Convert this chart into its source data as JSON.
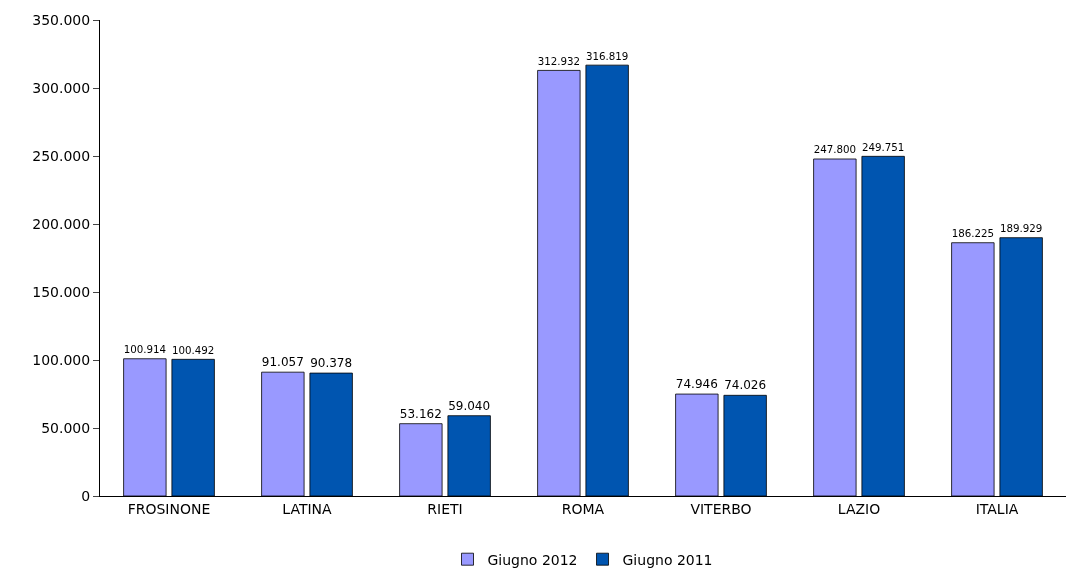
{
  "chart_data": {
    "type": "bar",
    "categories": [
      "FROSINONE",
      "LATINA",
      "RIETI",
      "ROMA",
      "VITERBO",
      "LAZIO",
      "ITALIA"
    ],
    "series": [
      {
        "name": "Giugno 2012",
        "color": "#9999ff",
        "values": [
          100914,
          91057,
          53162,
          312932,
          74946,
          247800,
          186225
        ],
        "value_labels": [
          "100.914",
          "91.057",
          "53.162",
          "312.932",
          "74.946",
          "247.800",
          "186.225"
        ]
      },
      {
        "name": "Giugno 2011",
        "color": "#0055b0",
        "values": [
          100492,
          90378,
          59040,
          316819,
          74026,
          249751,
          189929
        ],
        "value_labels": [
          "100.492",
          "90.378",
          "59.040",
          "316.819",
          "74.026",
          "249.751",
          "189.929"
        ]
      }
    ],
    "ylim": [
      0,
      350000
    ],
    "yticks": [
      {
        "value": 0,
        "label": "0"
      },
      {
        "value": 50000,
        "label": "50.000"
      },
      {
        "value": 100000,
        "label": "100.000"
      },
      {
        "value": 150000,
        "label": "150.000"
      },
      {
        "value": 200000,
        "label": "200.000"
      },
      {
        "value": 250000,
        "label": "250.000"
      },
      {
        "value": 300000,
        "label": "300.000"
      },
      {
        "value": 350000,
        "label": "350.000"
      }
    ],
    "legend": "bottom"
  }
}
